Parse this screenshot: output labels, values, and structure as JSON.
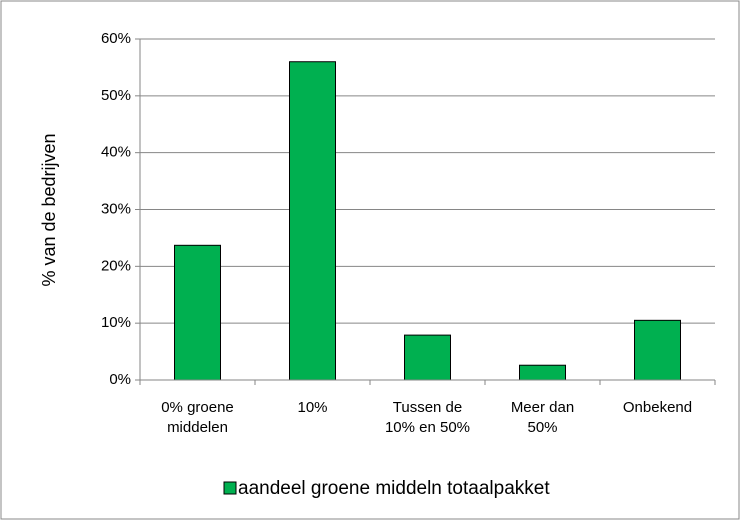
{
  "chart_data": {
    "type": "bar",
    "y_label": "% van de bedrijven",
    "categories": [
      "0% groene middelen",
      "10%",
      "Tussen de 10% en 50%",
      "Meer dan 50%",
      "Onbekend"
    ],
    "series": [
      {
        "name": "aandeel groene middeln totaalpakket",
        "color": "#00b050",
        "values": [
          23.7,
          56,
          7.9,
          2.6,
          10.5
        ]
      }
    ],
    "ylim": [
      0,
      60
    ],
    "yticks": [
      {
        "value": 0,
        "label": "0%"
      },
      {
        "value": 10,
        "label": "10%"
      },
      {
        "value": 20,
        "label": "20%"
      },
      {
        "value": 30,
        "label": "30%"
      },
      {
        "value": 40,
        "label": "40%"
      },
      {
        "value": 50,
        "label": "50%"
      },
      {
        "value": 60,
        "label": "60%"
      }
    ],
    "grid": true,
    "legend": "bottom"
  }
}
